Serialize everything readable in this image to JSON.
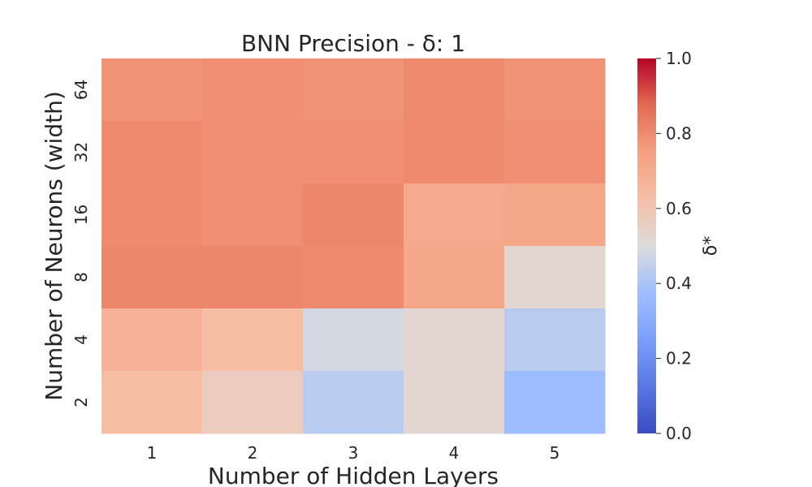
{
  "chart_data": {
    "type": "heatmap",
    "title": "BNN Precision - δ: 1",
    "xlabel": "Number of Hidden Layers",
    "ylabel": "Number of Neurons (width)",
    "x": [
      "1",
      "2",
      "3",
      "4",
      "5"
    ],
    "y": [
      "64",
      "32",
      "16",
      "8",
      "4",
      "2"
    ],
    "values": [
      [
        0.78,
        0.79,
        0.78,
        0.8,
        0.78
      ],
      [
        0.8,
        0.79,
        0.79,
        0.8,
        0.79
      ],
      [
        0.8,
        0.79,
        0.81,
        0.71,
        0.72
      ],
      [
        0.81,
        0.81,
        0.8,
        0.72,
        0.53
      ],
      [
        0.68,
        0.63,
        0.48,
        0.53,
        0.43
      ],
      [
        0.63,
        0.57,
        0.43,
        0.53,
        0.37
      ]
    ],
    "colorbar": {
      "label": "δ*",
      "range": [
        0.0,
        1.0
      ],
      "ticks": [
        "0.0",
        "0.2",
        "0.4",
        "0.6",
        "0.8",
        "1.0"
      ],
      "colormap": "coolwarm"
    },
    "grid": false
  }
}
